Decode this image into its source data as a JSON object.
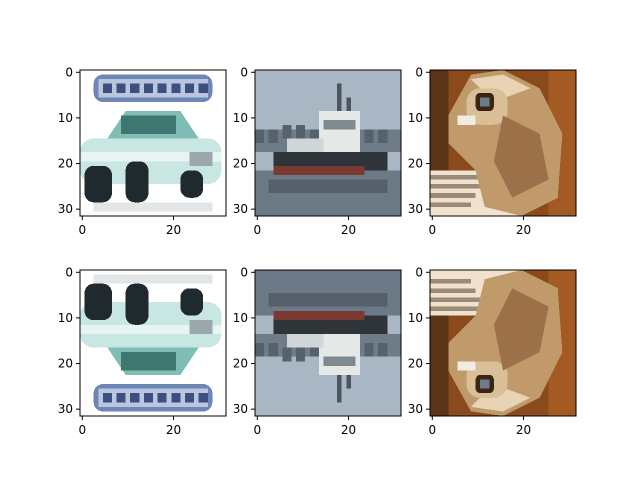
{
  "chart_data": [
    {
      "type": "image",
      "panel": "car-original",
      "xlim": [
        0,
        31
      ],
      "ylim": [
        31,
        0
      ],
      "x_ticks": [
        "0",
        "20"
      ],
      "y_ticks": [
        "0",
        "10",
        "20",
        "30"
      ],
      "flipped_vertically": false,
      "colors": {
        "sky": "#ffffff",
        "body": "#c9e7e2",
        "banner": "#6e86b6",
        "dark": "#202a2e",
        "grey": "#9aa7ad"
      }
    },
    {
      "type": "image",
      "panel": "ship-original",
      "xlim": [
        0,
        31
      ],
      "ylim": [
        31,
        0
      ],
      "x_ticks": [
        "0",
        "20"
      ],
      "y_ticks": [
        "0",
        "10",
        "20",
        "30"
      ],
      "flipped_vertically": false,
      "colors": {
        "sky": "#a9b6c3",
        "hull": "#2e3438",
        "red": "#7a3a32",
        "white": "#e4e8e6",
        "water": "#6b7a86"
      }
    },
    {
      "type": "image",
      "panel": "cat-original",
      "xlim": [
        0,
        31
      ],
      "ylim": [
        31,
        0
      ],
      "x_ticks": [
        "0",
        "20"
      ],
      "y_ticks": [
        "0",
        "10",
        "20",
        "30"
      ],
      "flipped_vertically": false,
      "colors": {
        "wood": "#8a4a1c",
        "fur": "#c19a6b",
        "light": "#f0e2cc",
        "dark": "#3b2414"
      }
    },
    {
      "type": "image",
      "panel": "car-flipped",
      "xlim": [
        0,
        31
      ],
      "ylim": [
        31,
        0
      ],
      "x_ticks": [
        "0",
        "20"
      ],
      "y_ticks": [
        "0",
        "10",
        "20",
        "30"
      ],
      "flipped_vertically": true,
      "colors": {
        "sky": "#ffffff",
        "body": "#c9e7e2",
        "banner": "#6e86b6",
        "dark": "#202a2e",
        "grey": "#9aa7ad"
      }
    },
    {
      "type": "image",
      "panel": "ship-flipped",
      "xlim": [
        0,
        31
      ],
      "ylim": [
        31,
        0
      ],
      "x_ticks": [
        "0",
        "20"
      ],
      "y_ticks": [
        "0",
        "10",
        "20",
        "30"
      ],
      "flipped_vertically": true,
      "colors": {
        "sky": "#a9b6c3",
        "hull": "#2e3438",
        "red": "#7a3a32",
        "white": "#e4e8e6",
        "water": "#6b7a86"
      }
    },
    {
      "type": "image",
      "panel": "cat-flipped",
      "xlim": [
        0,
        31
      ],
      "ylim": [
        31,
        0
      ],
      "x_ticks": [
        "0",
        "20"
      ],
      "y_ticks": [
        "0",
        "10",
        "20",
        "30"
      ],
      "flipped_vertically": true,
      "colors": {
        "wood": "#8a4a1c",
        "fur": "#c19a6b",
        "light": "#f0e2cc",
        "dark": "#3b2414"
      }
    }
  ]
}
